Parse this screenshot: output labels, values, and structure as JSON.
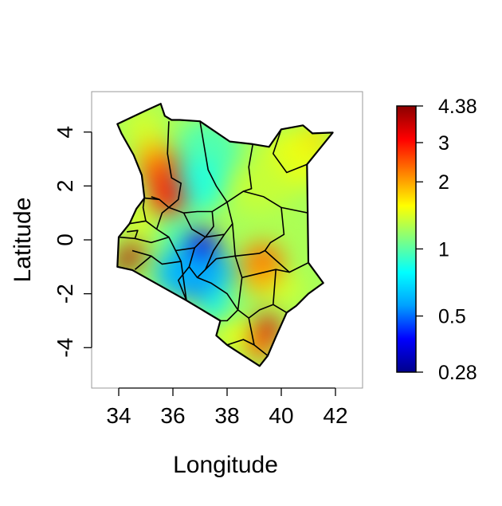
{
  "map": {
    "xlabel": "Longitude",
    "ylabel": "Latitude",
    "xlim": [
      33,
      43
    ],
    "ylim": [
      -5.5,
      5.5
    ],
    "x_ticks": [
      {
        "value": 34,
        "label": "34"
      },
      {
        "value": 36,
        "label": "36"
      },
      {
        "value": 38,
        "label": "38"
      },
      {
        "value": 40,
        "label": "40"
      },
      {
        "value": 42,
        "label": "42"
      }
    ],
    "y_ticks": [
      {
        "value": 4,
        "label": "4"
      },
      {
        "value": 2,
        "label": "2"
      },
      {
        "value": 0,
        "label": "0"
      },
      {
        "value": -2,
        "label": "-2"
      },
      {
        "value": -4,
        "label": "-4"
      }
    ]
  },
  "legend": {
    "scale": "log",
    "min": 0.28,
    "max": 4.38,
    "ticks": [
      {
        "value": 4.38,
        "label": "4.38"
      },
      {
        "value": 3,
        "label": "3"
      },
      {
        "value": 2,
        "label": "2"
      },
      {
        "value": 1,
        "label": "1"
      },
      {
        "value": 0.5,
        "label": "0.5"
      },
      {
        "value": 0.28,
        "label": "0.28"
      }
    ],
    "colors": [
      "#00008b",
      "#0000ff",
      "#00a0ff",
      "#00ffff",
      "#80ff80",
      "#ffff00",
      "#ff8000",
      "#ff0000",
      "#8b0000"
    ]
  }
}
